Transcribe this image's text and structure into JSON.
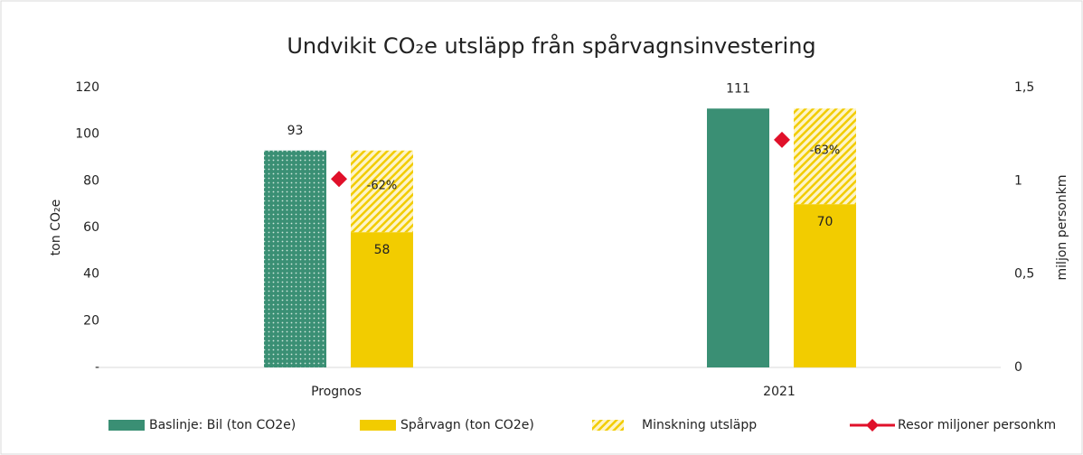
{
  "chart_data": {
    "type": "bar",
    "title": "Undvikit CO₂e utsläpp från spårvagnsinvestering",
    "y_label": "ton CO₂e",
    "y2_label": "miljon personkm",
    "categories": [
      "Prognos",
      "2021"
    ],
    "series": [
      {
        "name": "Baslinje: Bil (ton CO2e)",
        "color": "#3a8f74",
        "patterns": [
          "dots",
          "solid"
        ],
        "values": [
          93,
          111
        ]
      },
      {
        "name": "Spårvagn (ton CO2e)",
        "color": "#f2cc00",
        "values": [
          58,
          70
        ]
      },
      {
        "name": "Minskning utsläpp",
        "color": "#f2cc00",
        "pattern": "hatch",
        "stack": "Spårvagn (ton CO2e)",
        "values": [
          35,
          41
        ]
      },
      {
        "name": "Resor miljoner personkm",
        "color": "#e0102a",
        "type": "line",
        "axis": "y2",
        "values": [
          1.01,
          1.22
        ]
      }
    ],
    "annotations": [
      "-62%",
      "-63%"
    ],
    "ylim": [
      0,
      120
    ],
    "yticks": [
      {
        "value": 0,
        "label": "-"
      },
      20,
      40,
      60,
      80,
      100,
      120
    ],
    "y2lim": [
      0,
      1.5
    ],
    "y2ticks": [
      0,
      {
        "value": 0.5,
        "label": "0,5"
      },
      1,
      {
        "value": 1.5,
        "label": "1,5"
      }
    ],
    "grid": false,
    "legend": "bottom"
  }
}
